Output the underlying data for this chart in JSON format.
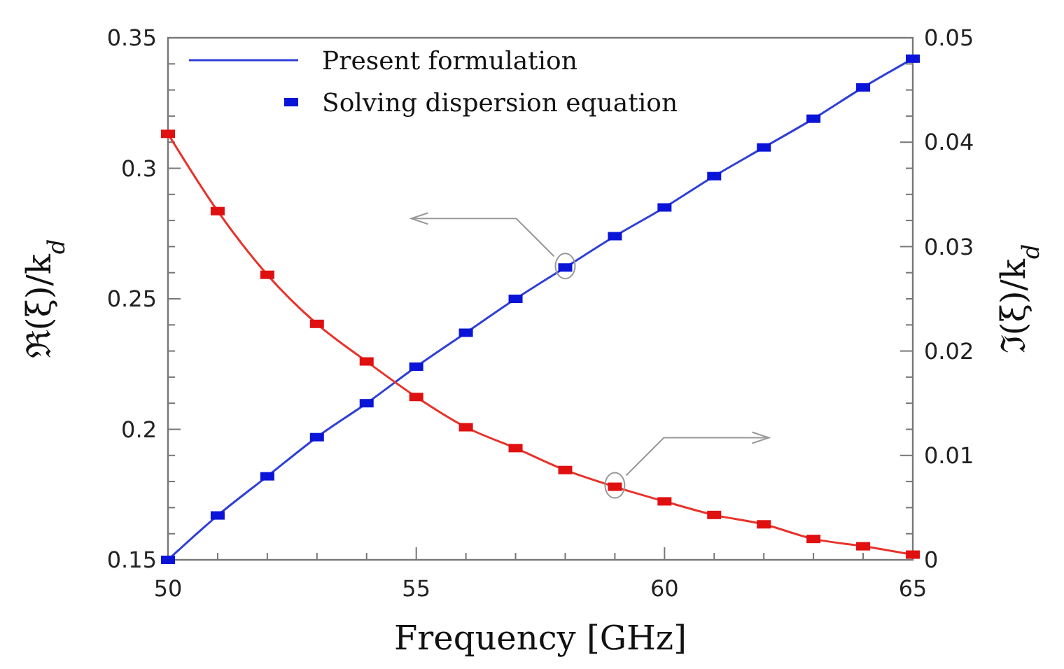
{
  "chart_data": {
    "type": "line",
    "xlabel": "Frequency [GHz]",
    "ylabel": "ℜ(ξ)/k$_{d}$",
    "y2label": "ℑ(ξ)/k$_{d}$",
    "x": [
      50,
      51,
      52,
      53,
      54,
      55,
      56,
      57,
      58,
      59,
      60,
      61,
      62,
      63,
      64,
      65
    ],
    "series": [
      {
        "name": "Present formulation",
        "axis": "y",
        "color": "#2f3fd8",
        "marker": "none",
        "values": [
          0.15,
          0.167,
          0.182,
          0.197,
          0.21,
          0.224,
          0.237,
          0.25,
          0.262,
          0.274,
          0.285,
          0.297,
          0.308,
          0.319,
          0.331,
          0.342
        ]
      },
      {
        "name": "Solving dispersion equation",
        "type": "scatter",
        "axis": "y",
        "color": "#0a14d8",
        "marker": "square",
        "values": [
          0.15,
          0.167,
          0.182,
          0.197,
          0.21,
          0.224,
          0.237,
          0.25,
          0.262,
          0.274,
          0.285,
          0.297,
          0.308,
          0.319,
          0.331,
          0.342
        ]
      },
      {
        "axis": "y2",
        "color": "#e8322a",
        "marker": "none",
        "values": [
          0.0408,
          0.0334,
          0.0273,
          0.0226,
          0.019,
          0.0156,
          0.0127,
          0.0107,
          0.0086,
          0.007,
          0.0056,
          0.0043,
          0.0034,
          0.002,
          0.0013,
          0.0005
        ]
      },
      {
        "type": "scatter",
        "axis": "y2",
        "color": "#e01010",
        "marker": "square",
        "values": [
          0.0408,
          0.0334,
          0.0273,
          0.0226,
          0.019,
          0.0156,
          0.0127,
          0.0107,
          0.0086,
          0.007,
          0.0056,
          0.0043,
          0.0034,
          0.002,
          0.0013,
          0.0005
        ]
      }
    ],
    "xlim": [
      50,
      65
    ],
    "xticks": [
      50,
      {
        "value": 51,
        "label": null
      },
      {
        "value": 52,
        "label": null
      },
      {
        "value": 53,
        "label": null
      },
      {
        "value": 54,
        "label": null
      },
      55,
      {
        "value": 56,
        "label": null
      },
      {
        "value": 57,
        "label": null
      },
      {
        "value": 58,
        "label": null
      },
      {
        "value": 59,
        "label": null
      },
      60,
      {
        "value": 61,
        "label": null
      },
      {
        "value": 62,
        "label": null
      },
      {
        "value": 63,
        "label": null
      },
      {
        "value": 64,
        "label": null
      },
      65
    ],
    "ylim": [
      0.15,
      0.35
    ],
    "yticks": [
      0.15,
      {
        "value": 0.16,
        "label": null
      },
      {
        "value": 0.17,
        "label": null
      },
      {
        "value": 0.18,
        "label": null
      },
      {
        "value": 0.19,
        "label": null
      },
      0.2,
      {
        "value": 0.21,
        "label": null
      },
      {
        "value": 0.22,
        "label": null
      },
      {
        "value": 0.23,
        "label": null
      },
      {
        "value": 0.24,
        "label": null
      },
      0.25,
      {
        "value": 0.26,
        "label": null
      },
      {
        "value": 0.27,
        "label": null
      },
      {
        "value": 0.28,
        "label": null
      },
      {
        "value": 0.29,
        "label": null
      },
      0.3,
      {
        "value": 0.31,
        "label": null
      },
      {
        "value": 0.32,
        "label": null
      },
      {
        "value": 0.33,
        "label": null
      },
      {
        "value": 0.34,
        "label": null
      },
      0.35
    ],
    "y2lim": [
      0,
      0.05
    ],
    "y2ticks": [
      0,
      {
        "value": 0.0025,
        "label": null
      },
      {
        "value": 0.005,
        "label": null
      },
      {
        "value": 0.0075,
        "label": null
      },
      0.01,
      {
        "value": 0.0125,
        "label": null
      },
      {
        "value": 0.015,
        "label": null
      },
      {
        "value": 0.0175,
        "label": null
      },
      0.02,
      {
        "value": 0.0225,
        "label": null
      },
      {
        "value": 0.025,
        "label": null
      },
      {
        "value": 0.0275,
        "label": null
      },
      0.03,
      {
        "value": 0.0325,
        "label": null
      },
      {
        "value": 0.035,
        "label": null
      },
      {
        "value": 0.0375,
        "label": null
      },
      0.04,
      {
        "value": 0.0425,
        "label": null
      },
      {
        "value": 0.045,
        "label": null
      },
      {
        "value": 0.0475,
        "label": null
      },
      0.05
    ],
    "grid": false,
    "legend": "top left"
  }
}
